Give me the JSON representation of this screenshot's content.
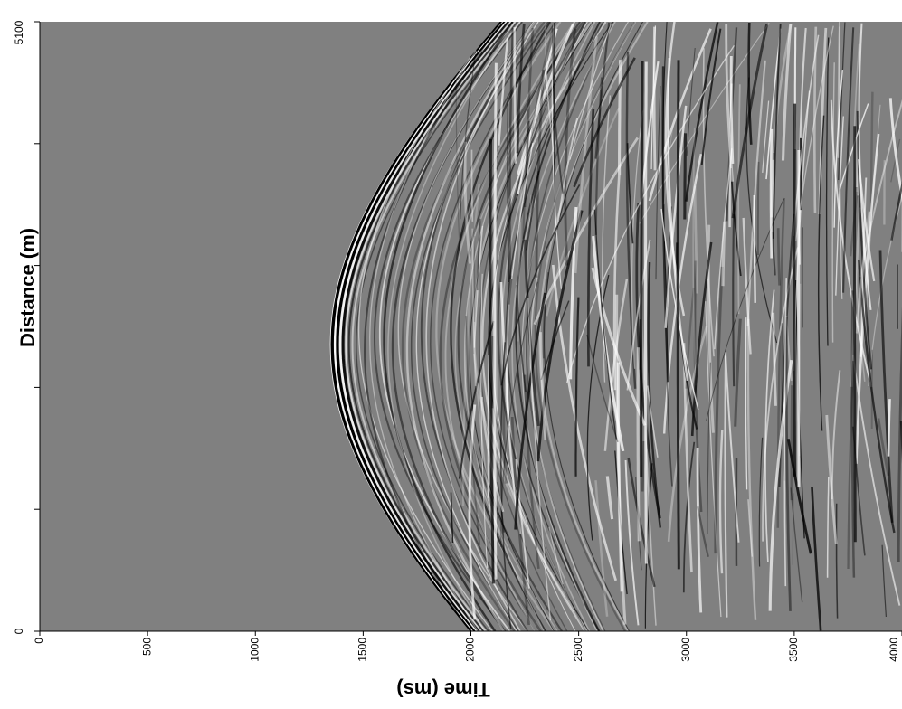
{
  "chart_data": {
    "type": "seismic",
    "xlabel": "Time (ms)",
    "ylabel": "Distance (m)",
    "xlim": [
      0,
      4000
    ],
    "ylim": [
      0,
      5100
    ],
    "xticks": [
      0,
      500,
      1000,
      1500,
      2000,
      2500,
      3000,
      3500,
      4000
    ],
    "yticks": [
      0,
      {
        "value": 1020,
        "label": null
      },
      {
        "value": 2040,
        "label": null
      },
      {
        "value": 3060,
        "label": null
      },
      {
        "value": 4080,
        "label": null
      },
      5100
    ],
    "background": "#808080"
  }
}
